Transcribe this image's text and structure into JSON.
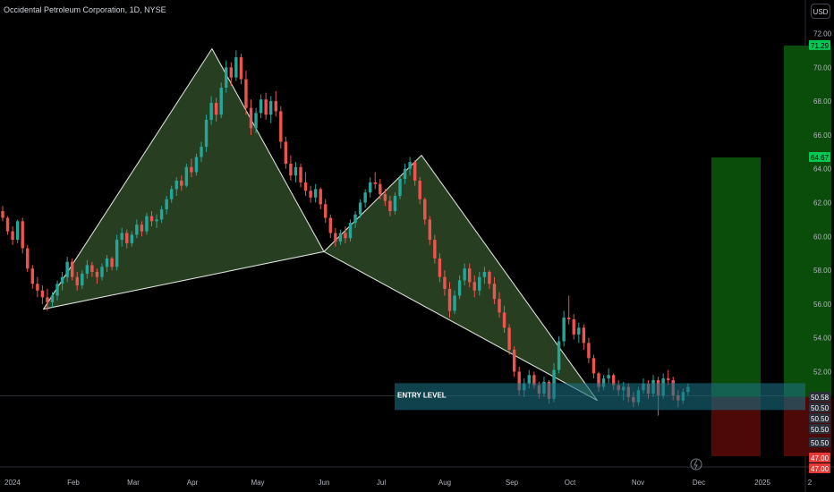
{
  "header": {
    "title": "Occidental Petroleum Corporation, 1D, NYSE",
    "currency": "USD"
  },
  "annotations": {
    "entry_label": "ENTRY LEVEL"
  },
  "colors": {
    "background": "#000000",
    "up": "#26a69a",
    "down": "#ef5350",
    "pattern_fill": "#2e4a26",
    "entry_box": "#0f4a58",
    "profit": "#0a4d0a",
    "loss": "#4d0808"
  },
  "chart_data": {
    "type": "candlestick",
    "title": "Occidental Petroleum Corporation, 1D, NYSE",
    "ylim": [
      46.5,
      73
    ],
    "y_ticks": [
      72.0,
      70.0,
      68.0,
      66.0,
      64.0,
      62.0,
      60.0,
      58.0,
      56.0,
      54.0,
      52.0
    ],
    "x_ticks": [
      "2024",
      "Feb",
      "Mar",
      "Apr",
      "May",
      "Jun",
      "Jul",
      "Aug",
      "Sep",
      "Oct",
      "Nov",
      "Dec",
      "2025",
      "2"
    ],
    "price_labels": [
      {
        "text": "71.29",
        "value": 71.29,
        "color": "#26a69a"
      },
      {
        "text": "64.67",
        "value": 64.67,
        "color": "#26a69a"
      },
      {
        "text": "50.58",
        "value": 50.58,
        "color": "#2a2e39"
      },
      {
        "text": "50.50",
        "value": 50.5,
        "color": "#2a2e39"
      },
      {
        "text": "50.50",
        "value": 50.5,
        "color": "#2a2e39"
      },
      {
        "text": "50.50",
        "value": 50.5,
        "color": "#2a2e39"
      },
      {
        "text": "50.50",
        "value": 50.5,
        "color": "#2a2e39"
      },
      {
        "text": "47.00",
        "value": 47.0,
        "color": "#e53935"
      },
      {
        "text": "47.00",
        "value": 47.0,
        "color": "#e53935"
      }
    ],
    "pattern": [
      [
        [
          "Jan 18",
          55.7
        ],
        [
          "Apr 10",
          71.1
        ],
        [
          "Jun 1",
          59.1
        ]
      ],
      [
        [
          "Jun 1",
          59.1
        ],
        [
          "Jul 20",
          64.8
        ],
        [
          "Oct 13",
          50.3
        ]
      ]
    ],
    "entry_level": 50.58,
    "positions": [
      {
        "target": 64.67,
        "entry": 50.5,
        "stop": 47.0
      },
      {
        "target": 71.29,
        "entry": 50.5,
        "stop": 47.0
      }
    ],
    "candles": [
      [
        61.5,
        61.8,
        60.9,
        61.1
      ],
      [
        61.1,
        61.2,
        60.1,
        60.3
      ],
      [
        60.3,
        60.6,
        59.5,
        59.8
      ],
      [
        59.8,
        61.0,
        59.6,
        60.9
      ],
      [
        60.9,
        61.1,
        59.0,
        59.3
      ],
      [
        59.3,
        59.5,
        57.9,
        58.1
      ],
      [
        58.1,
        58.3,
        56.9,
        57.2
      ],
      [
        57.2,
        57.6,
        56.4,
        56.8
      ],
      [
        56.8,
        57.1,
        56.0,
        56.4
      ],
      [
        56.4,
        56.9,
        55.6,
        56.1
      ],
      [
        56.1,
        56.7,
        55.8,
        56.5
      ],
      [
        56.5,
        57.4,
        56.2,
        57.2
      ],
      [
        57.2,
        57.9,
        56.8,
        57.6
      ],
      [
        57.6,
        58.8,
        57.3,
        58.5
      ],
      [
        58.5,
        58.7,
        57.4,
        57.6
      ],
      [
        57.6,
        57.9,
        56.8,
        57.1
      ],
      [
        57.1,
        58.0,
        56.9,
        57.8
      ],
      [
        57.8,
        58.6,
        57.5,
        58.3
      ],
      [
        58.3,
        58.5,
        57.6,
        57.9
      ],
      [
        57.9,
        58.1,
        57.2,
        57.6
      ],
      [
        57.6,
        58.4,
        57.4,
        58.2
      ],
      [
        58.2,
        58.9,
        57.9,
        58.7
      ],
      [
        58.7,
        58.8,
        58.0,
        58.2
      ],
      [
        58.2,
        60.1,
        58.0,
        59.8
      ],
      [
        59.8,
        60.5,
        59.4,
        60.2
      ],
      [
        60.2,
        60.4,
        59.3,
        59.6
      ],
      [
        59.6,
        60.3,
        59.4,
        60.1
      ],
      [
        60.1,
        61.0,
        59.9,
        60.7
      ],
      [
        60.7,
        60.9,
        60.0,
        60.3
      ],
      [
        60.3,
        61.4,
        60.1,
        61.2
      ],
      [
        61.2,
        61.5,
        60.6,
        60.9
      ],
      [
        60.9,
        61.3,
        60.5,
        61.0
      ],
      [
        61.0,
        61.8,
        60.8,
        61.6
      ],
      [
        61.6,
        62.4,
        61.3,
        62.2
      ],
      [
        62.2,
        63.0,
        62.0,
        62.8
      ],
      [
        62.8,
        63.5,
        62.4,
        63.3
      ],
      [
        63.3,
        63.6,
        62.7,
        63.0
      ],
      [
        63.0,
        64.3,
        62.9,
        64.1
      ],
      [
        64.1,
        64.6,
        63.5,
        63.8
      ],
      [
        63.8,
        64.9,
        63.6,
        64.7
      ],
      [
        64.7,
        65.6,
        64.4,
        65.3
      ],
      [
        65.3,
        67.2,
        65.0,
        66.9
      ],
      [
        66.9,
        68.3,
        66.6,
        67.9
      ],
      [
        67.9,
        68.2,
        66.8,
        67.2
      ],
      [
        67.2,
        69.1,
        67.0,
        68.8
      ],
      [
        68.8,
        70.4,
        68.5,
        70.0
      ],
      [
        70.0,
        70.3,
        68.9,
        69.4
      ],
      [
        69.4,
        71.0,
        69.2,
        70.6
      ],
      [
        70.6,
        70.8,
        69.0,
        69.3
      ],
      [
        69.3,
        69.8,
        67.2,
        67.6
      ],
      [
        67.6,
        68.1,
        66.0,
        66.4
      ],
      [
        66.4,
        67.6,
        66.1,
        67.3
      ],
      [
        67.3,
        68.4,
        67.0,
        68.1
      ],
      [
        68.1,
        68.5,
        66.9,
        67.2
      ],
      [
        67.2,
        68.3,
        66.7,
        68.0
      ],
      [
        68.0,
        68.6,
        67.1,
        67.4
      ],
      [
        67.4,
        67.7,
        65.2,
        65.6
      ],
      [
        65.6,
        65.9,
        64.0,
        64.3
      ],
      [
        64.3,
        64.8,
        63.3,
        63.6
      ],
      [
        63.6,
        64.4,
        63.2,
        64.1
      ],
      [
        64.1,
        64.3,
        62.9,
        63.2
      ],
      [
        63.2,
        63.8,
        62.4,
        62.7
      ],
      [
        62.7,
        63.0,
        62.0,
        62.3
      ],
      [
        62.3,
        63.1,
        62.0,
        62.8
      ],
      [
        62.8,
        62.9,
        61.6,
        61.9
      ],
      [
        61.9,
        62.2,
        60.8,
        61.1
      ],
      [
        61.1,
        61.3,
        59.9,
        60.2
      ],
      [
        60.2,
        60.5,
        59.4,
        59.7
      ],
      [
        59.7,
        60.4,
        59.5,
        60.2
      ],
      [
        60.2,
        60.6,
        59.6,
        59.9
      ],
      [
        59.9,
        61.0,
        59.7,
        60.8
      ],
      [
        60.8,
        61.5,
        60.5,
        61.3
      ],
      [
        61.3,
        62.2,
        61.1,
        62.0
      ],
      [
        62.0,
        62.8,
        61.7,
        62.6
      ],
      [
        62.6,
        63.5,
        62.3,
        63.2
      ],
      [
        63.2,
        63.8,
        62.8,
        63.1
      ],
      [
        63.1,
        63.4,
        62.2,
        62.5
      ],
      [
        62.5,
        62.8,
        61.8,
        62.1
      ],
      [
        62.1,
        62.4,
        61.2,
        61.5
      ],
      [
        61.5,
        62.6,
        61.3,
        62.4
      ],
      [
        62.4,
        63.6,
        62.2,
        63.4
      ],
      [
        63.4,
        64.3,
        63.1,
        64.0
      ],
      [
        64.0,
        64.7,
        63.6,
        64.4
      ],
      [
        64.4,
        64.5,
        63.0,
        63.3
      ],
      [
        63.3,
        63.5,
        61.9,
        62.2
      ],
      [
        62.2,
        62.3,
        60.7,
        61.0
      ],
      [
        61.0,
        61.2,
        59.5,
        59.8
      ],
      [
        59.8,
        60.1,
        58.4,
        58.7
      ],
      [
        58.7,
        59.0,
        57.3,
        57.6
      ],
      [
        57.6,
        58.0,
        56.5,
        56.9
      ],
      [
        56.9,
        57.3,
        55.2,
        55.6
      ],
      [
        55.6,
        56.8,
        55.4,
        56.5
      ],
      [
        56.5,
        57.7,
        56.3,
        57.4
      ],
      [
        57.4,
        58.4,
        57.1,
        58.1
      ],
      [
        58.1,
        58.4,
        57.0,
        57.3
      ],
      [
        57.3,
        57.7,
        56.4,
        56.8
      ],
      [
        56.8,
        57.9,
        56.5,
        57.6
      ],
      [
        57.6,
        58.2,
        57.2,
        57.9
      ],
      [
        57.9,
        58.0,
        56.9,
        57.2
      ],
      [
        57.2,
        57.6,
        56.0,
        56.3
      ],
      [
        56.3,
        56.7,
        55.2,
        55.5
      ],
      [
        55.5,
        55.9,
        54.3,
        54.6
      ],
      [
        54.6,
        54.8,
        53.0,
        53.3
      ],
      [
        53.3,
        53.5,
        51.7,
        52.0
      ],
      [
        52.0,
        52.3,
        50.6,
        50.9
      ],
      [
        50.9,
        51.6,
        50.5,
        51.3
      ],
      [
        51.3,
        52.1,
        51.0,
        51.8
      ],
      [
        51.8,
        52.0,
        51.0,
        51.2
      ],
      [
        51.2,
        51.4,
        50.4,
        50.7
      ],
      [
        50.7,
        51.7,
        50.5,
        51.4
      ],
      [
        51.4,
        51.5,
        50.1,
        50.4
      ],
      [
        50.4,
        52.5,
        50.2,
        52.1
      ],
      [
        52.1,
        54.1,
        51.9,
        53.8
      ],
      [
        53.8,
        55.6,
        53.5,
        55.2
      ],
      [
        55.2,
        56.5,
        54.8,
        55.1
      ],
      [
        55.1,
        55.4,
        53.9,
        54.2
      ],
      [
        54.2,
        54.9,
        53.7,
        54.6
      ],
      [
        54.6,
        54.8,
        53.3,
        53.7
      ],
      [
        53.7,
        54.0,
        52.5,
        52.8
      ],
      [
        52.8,
        53.0,
        51.6,
        51.9
      ],
      [
        51.9,
        52.0,
        50.8,
        51.1
      ],
      [
        51.1,
        51.8,
        50.9,
        51.6
      ],
      [
        51.6,
        52.2,
        51.3,
        51.8
      ],
      [
        51.8,
        51.9,
        50.9,
        51.2
      ],
      [
        51.2,
        51.5,
        50.6,
        50.9
      ],
      [
        50.9,
        51.4,
        50.3,
        51.1
      ],
      [
        51.1,
        51.3,
        50.2,
        50.5
      ],
      [
        50.5,
        50.8,
        49.9,
        50.2
      ],
      [
        50.2,
        51.1,
        50.0,
        50.9
      ],
      [
        50.9,
        51.6,
        50.7,
        51.3
      ],
      [
        51.3,
        51.5,
        50.4,
        50.7
      ],
      [
        50.7,
        51.8,
        50.5,
        51.5
      ],
      [
        51.5,
        51.7,
        49.4,
        50.6
      ],
      [
        50.6,
        51.9,
        50.4,
        51.6
      ],
      [
        51.6,
        52.1,
        51.2,
        51.5
      ],
      [
        51.5,
        51.7,
        50.3,
        50.6
      ],
      [
        50.6,
        50.9,
        49.9,
        50.3
      ],
      [
        50.3,
        51.0,
        50.1,
        50.8
      ],
      [
        50.8,
        51.3,
        50.6,
        51.1
      ]
    ]
  }
}
